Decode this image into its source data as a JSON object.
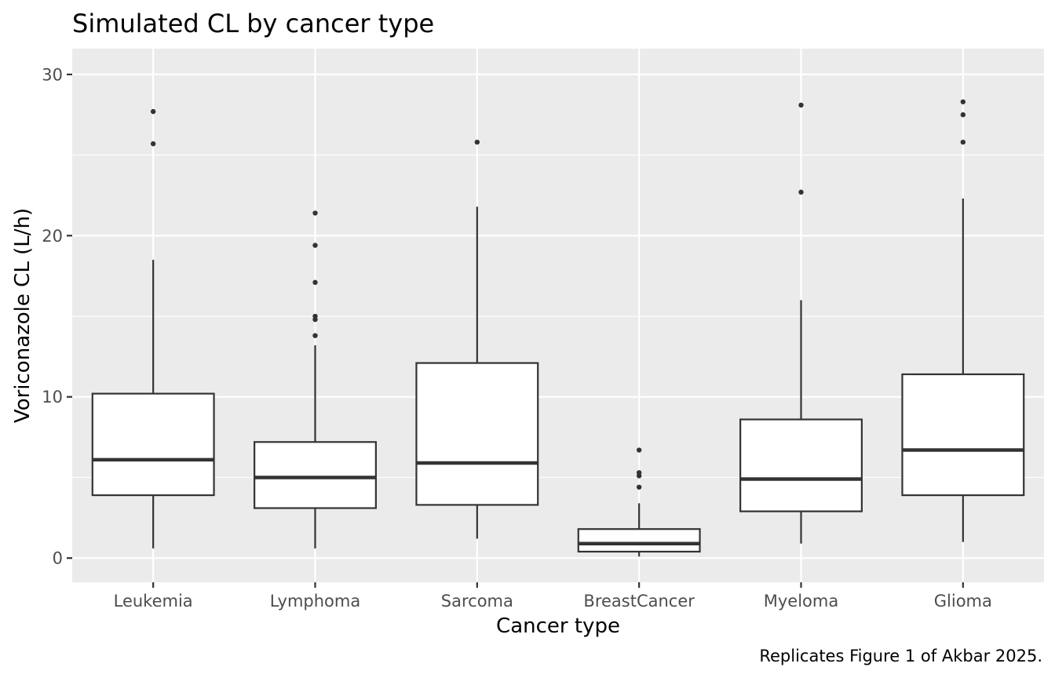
{
  "chart_data": {
    "type": "boxplot",
    "title": "Simulated CL by cancer type",
    "xlabel": "Cancer type",
    "ylabel": "Voriconazole CL (L/h)",
    "caption": "Replicates Figure 1 of Akbar 2025.",
    "categories": [
      "Leukemia",
      "Lymphoma",
      "Sarcoma",
      "BreastCancer",
      "Myeloma",
      "Glioma"
    ],
    "ylim": [
      -1.5,
      31.6
    ],
    "yticks": [
      0,
      10,
      20,
      30
    ],
    "ytick_labels": [
      "0",
      "10",
      "20",
      "30"
    ],
    "grid": true,
    "background": "#ebebeb",
    "box_fill": "#ffffff",
    "line_color": "#333333",
    "boxes": [
      {
        "category": "Leukemia",
        "whisker_low": 0.6,
        "q1": 3.9,
        "median": 6.1,
        "q3": 10.2,
        "whisker_high": 18.5,
        "outliers": [
          25.7,
          27.7
        ]
      },
      {
        "category": "Lymphoma",
        "whisker_low": 0.6,
        "q1": 3.1,
        "median": 5.0,
        "q3": 7.2,
        "whisker_high": 13.2,
        "outliers": [
          13.8,
          14.8,
          15.0,
          17.1,
          19.4,
          21.4
        ]
      },
      {
        "category": "Sarcoma",
        "whisker_low": 1.2,
        "q1": 3.3,
        "median": 5.9,
        "q3": 12.1,
        "whisker_high": 21.8,
        "outliers": [
          25.8
        ]
      },
      {
        "category": "BreastCancer",
        "whisker_low": 0.1,
        "q1": 0.4,
        "median": 0.9,
        "q3": 1.8,
        "whisker_high": 3.4,
        "outliers": [
          4.4,
          5.1,
          5.3,
          6.7
        ]
      },
      {
        "category": "Myeloma",
        "whisker_low": 0.9,
        "q1": 2.9,
        "median": 4.9,
        "q3": 8.6,
        "whisker_high": 16.0,
        "outliers": [
          22.7,
          28.1
        ]
      },
      {
        "category": "Glioma",
        "whisker_low": 1.0,
        "q1": 3.9,
        "median": 6.7,
        "q3": 11.4,
        "whisker_high": 22.3,
        "outliers": [
          25.8,
          27.5,
          28.3
        ]
      }
    ]
  }
}
